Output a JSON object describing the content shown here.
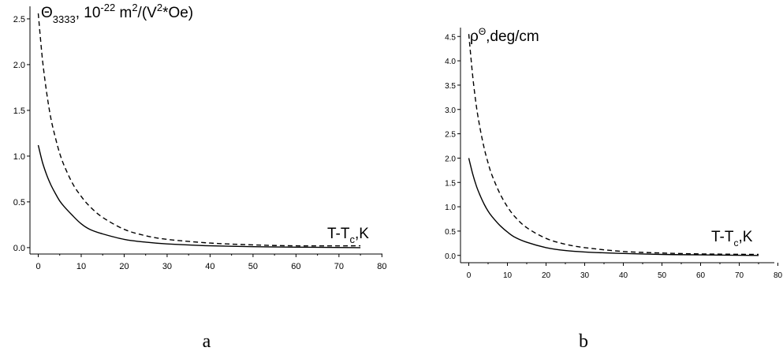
{
  "chart_data": [
    {
      "type": "line",
      "panel_label": "a",
      "ylabel": {
        "base": "Θ",
        "sub": "3333",
        "rest1": ", 10",
        "sup1": "-22",
        "rest2": " m",
        "sup2": "2",
        "rest3": "/(V",
        "sup3": "2",
        "rest4": "*Oe)"
      },
      "xlabel": {
        "base": "T-T",
        "sub": "c",
        "rest": ",K"
      },
      "xlim": [
        -2,
        80
      ],
      "ylim": [
        -0.07,
        2.62
      ],
      "xticks": [
        0,
        10,
        20,
        30,
        40,
        50,
        60,
        70,
        80
      ],
      "xtick_labels": [
        "0",
        "10",
        "20",
        "30",
        "40",
        "50",
        "60",
        "70",
        "80"
      ],
      "yticks": [
        0.0,
        0.5,
        1.0,
        1.5,
        2.0,
        2.5
      ],
      "ytick_labels": [
        "0.0",
        "0.5",
        "1.0",
        "1.5",
        "2.0",
        "2.5"
      ],
      "series": [
        {
          "style": "solid",
          "x": [
            0,
            1,
            2,
            3,
            4,
            5,
            6,
            8,
            10,
            12,
            15,
            20,
            25,
            30,
            40,
            50,
            60,
            75
          ],
          "y": [
            1.12,
            0.93,
            0.79,
            0.68,
            0.59,
            0.51,
            0.45,
            0.35,
            0.26,
            0.2,
            0.15,
            0.09,
            0.06,
            0.04,
            0.02,
            0.01,
            0.005,
            0.0
          ]
        },
        {
          "style": "dashed",
          "x": [
            0,
            1,
            2,
            3,
            4,
            5,
            6,
            8,
            10,
            12,
            15,
            20,
            25,
            30,
            40,
            50,
            60,
            75
          ],
          "y": [
            2.56,
            2.05,
            1.68,
            1.4,
            1.2,
            1.03,
            0.9,
            0.7,
            0.56,
            0.45,
            0.33,
            0.2,
            0.13,
            0.09,
            0.05,
            0.03,
            0.02,
            0.02
          ]
        }
      ]
    },
    {
      "type": "line",
      "panel_label": "b",
      "ylabel": {
        "base": "ρ",
        "sup": "Θ",
        "rest": ",deg/cm"
      },
      "xlabel": {
        "base": "T-T",
        "sub": "c",
        "rest": ",K"
      },
      "xlim": [
        -2,
        80
      ],
      "ylim": [
        -0.15,
        4.65
      ],
      "xticks": [
        0,
        10,
        20,
        30,
        40,
        50,
        60,
        70,
        80
      ],
      "xtick_labels": [
        "0",
        "10",
        "20",
        "30",
        "40",
        "50",
        "60",
        "70",
        "80"
      ],
      "yticks": [
        0.0,
        0.5,
        1.0,
        1.5,
        2.0,
        2.5,
        3.0,
        3.5,
        4.0,
        4.5
      ],
      "ytick_labels": [
        "0.0",
        "0.5",
        "1.0",
        "1.5",
        "2.0",
        "2.5",
        "3.0",
        "3.5",
        "4.0",
        "4.5"
      ],
      "series": [
        {
          "style": "solid",
          "x": [
            0,
            1,
            2,
            3,
            4,
            5,
            6,
            8,
            10,
            12,
            15,
            20,
            25,
            30,
            40,
            50,
            60,
            75
          ],
          "y": [
            2.0,
            1.68,
            1.42,
            1.22,
            1.05,
            0.91,
            0.8,
            0.62,
            0.48,
            0.37,
            0.27,
            0.16,
            0.1,
            0.07,
            0.04,
            0.02,
            0.01,
            0.0
          ]
        },
        {
          "style": "dashed",
          "x": [
            0,
            1,
            2,
            3,
            4,
            5,
            6,
            8,
            10,
            12,
            15,
            20,
            25,
            30,
            40,
            50,
            60,
            75
          ],
          "y": [
            4.55,
            3.7,
            3.05,
            2.58,
            2.2,
            1.9,
            1.65,
            1.28,
            1.0,
            0.79,
            0.57,
            0.35,
            0.23,
            0.16,
            0.08,
            0.05,
            0.03,
            0.02
          ]
        }
      ]
    }
  ]
}
